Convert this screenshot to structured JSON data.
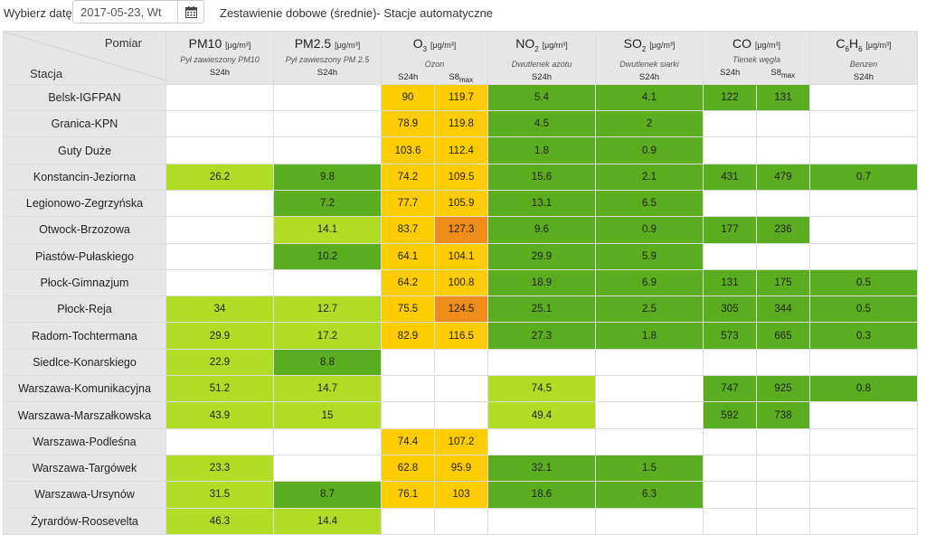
{
  "toolbar": {
    "date_label": "Wybierz datę:",
    "date_value": "2017-05-23, Wt",
    "calendar_icon": "calendar-icon",
    "title": "Zestawienie dobowe (średnie)- Stacje automatyczne"
  },
  "table": {
    "corner": {
      "measure": "Pomiar",
      "station": "Stacja"
    },
    "pollutants": [
      {
        "name": "PM10",
        "unit": "[μg/m³]",
        "desc": "Pył zawieszony PM10",
        "subs": [
          "S24h"
        ]
      },
      {
        "name": "PM2.5",
        "unit": "[μg/m³]",
        "desc": "Pył zawieszony PM 2.5",
        "subs": [
          "S24h"
        ]
      },
      {
        "name": "O3",
        "unit": "[μg/m³]",
        "desc": "Ozon",
        "subs": [
          "S24h",
          "S8max"
        ]
      },
      {
        "name": "NO2",
        "unit": "[μg/m³]",
        "desc": "Dwutlenek azotu",
        "subs": [
          "S24h"
        ]
      },
      {
        "name": "SO2",
        "unit": "[μg/m³]",
        "desc": "Dwutlenek siarki",
        "subs": [
          "S24h"
        ]
      },
      {
        "name": "CO",
        "unit": "[μg/m³]",
        "desc": "Tlenek węgla",
        "subs": [
          "S24h",
          "S8max"
        ]
      },
      {
        "name": "C6H6",
        "unit": "[μg/m³]",
        "desc": "Benzen",
        "subs": [
          "S24h"
        ]
      }
    ],
    "colors": {
      "g": "#5aad1e",
      "lg": "#b0dc26",
      "y": "#ffcc00",
      "o": "#ef8c1a",
      "w": "#ffffff"
    },
    "rows": [
      {
        "station": "Belsk-IGFPAN",
        "cells": [
          [
            "",
            ""
          ],
          [
            "",
            ""
          ],
          [
            "90",
            "y"
          ],
          [
            "119.7",
            "y"
          ],
          [
            "5.4",
            "g"
          ],
          [
            "4.1",
            "g"
          ],
          [
            "122",
            "g"
          ],
          [
            "131",
            "g"
          ],
          [
            "",
            ""
          ]
        ]
      },
      {
        "station": "Granica-KPN",
        "cells": [
          [
            "",
            ""
          ],
          [
            "",
            ""
          ],
          [
            "78.9",
            "y"
          ],
          [
            "119.8",
            "y"
          ],
          [
            "4.5",
            "g"
          ],
          [
            "2",
            "g"
          ],
          [
            "",
            ""
          ],
          [
            "",
            ""
          ],
          [
            "",
            ""
          ]
        ]
      },
      {
        "station": "Guty Duże",
        "cells": [
          [
            "",
            ""
          ],
          [
            "",
            ""
          ],
          [
            "103.6",
            "y"
          ],
          [
            "112.4",
            "y"
          ],
          [
            "1.8",
            "g"
          ],
          [
            "0.9",
            "g"
          ],
          [
            "",
            ""
          ],
          [
            "",
            ""
          ],
          [
            "",
            ""
          ]
        ]
      },
      {
        "station": "Konstancin-Jeziorna",
        "cells": [
          [
            "26.2",
            "lg"
          ],
          [
            "9.8",
            "g"
          ],
          [
            "74.2",
            "y"
          ],
          [
            "109.5",
            "y"
          ],
          [
            "15.6",
            "g"
          ],
          [
            "2.1",
            "g"
          ],
          [
            "431",
            "g"
          ],
          [
            "479",
            "g"
          ],
          [
            "0.7",
            "g"
          ]
        ]
      },
      {
        "station": "Legionowo-Zegrzyńska",
        "cells": [
          [
            "",
            ""
          ],
          [
            "7.2",
            "g"
          ],
          [
            "77.7",
            "y"
          ],
          [
            "105.9",
            "y"
          ],
          [
            "13.1",
            "g"
          ],
          [
            "6.5",
            "g"
          ],
          [
            "",
            ""
          ],
          [
            "",
            ""
          ],
          [
            "",
            ""
          ]
        ]
      },
      {
        "station": "Otwock-Brzozowa",
        "cells": [
          [
            "",
            ""
          ],
          [
            "14.1",
            "lg"
          ],
          [
            "83.7",
            "y"
          ],
          [
            "127.3",
            "o"
          ],
          [
            "9.6",
            "g"
          ],
          [
            "0.9",
            "g"
          ],
          [
            "177",
            "g"
          ],
          [
            "236",
            "g"
          ],
          [
            "",
            ""
          ]
        ]
      },
      {
        "station": "Piastów-Pułaskiego",
        "cells": [
          [
            "",
            ""
          ],
          [
            "10.2",
            "g"
          ],
          [
            "64.1",
            "y"
          ],
          [
            "104.1",
            "y"
          ],
          [
            "29.9",
            "g"
          ],
          [
            "5.9",
            "g"
          ],
          [
            "",
            ""
          ],
          [
            "",
            ""
          ],
          [
            "",
            ""
          ]
        ]
      },
      {
        "station": "Płock-Gimnazjum",
        "cells": [
          [
            "",
            ""
          ],
          [
            "",
            ""
          ],
          [
            "64.2",
            "y"
          ],
          [
            "100.8",
            "y"
          ],
          [
            "18.9",
            "g"
          ],
          [
            "6.9",
            "g"
          ],
          [
            "131",
            "g"
          ],
          [
            "175",
            "g"
          ],
          [
            "0.5",
            "g"
          ]
        ]
      },
      {
        "station": "Płock-Reja",
        "cells": [
          [
            "34",
            "lg"
          ],
          [
            "12.7",
            "lg"
          ],
          [
            "75.5",
            "y"
          ],
          [
            "124.5",
            "o"
          ],
          [
            "25.1",
            "g"
          ],
          [
            "2.5",
            "g"
          ],
          [
            "305",
            "g"
          ],
          [
            "344",
            "g"
          ],
          [
            "0.5",
            "g"
          ]
        ]
      },
      {
        "station": "Radom-Tochtermana",
        "cells": [
          [
            "29.9",
            "lg"
          ],
          [
            "17.2",
            "lg"
          ],
          [
            "82.9",
            "y"
          ],
          [
            "116.5",
            "y"
          ],
          [
            "27.3",
            "g"
          ],
          [
            "1.8",
            "g"
          ],
          [
            "573",
            "g"
          ],
          [
            "665",
            "g"
          ],
          [
            "0.3",
            "g"
          ]
        ]
      },
      {
        "station": "Siedlce-Konarskiego",
        "cells": [
          [
            "22.9",
            "lg"
          ],
          [
            "8.8",
            "g"
          ],
          [
            "",
            ""
          ],
          [
            "",
            ""
          ],
          [
            "",
            ""
          ],
          [
            "",
            ""
          ],
          [
            "",
            ""
          ],
          [
            "",
            ""
          ],
          [
            "",
            ""
          ]
        ]
      },
      {
        "station": "Warszawa-Komunikacyjna",
        "cells": [
          [
            "51.2",
            "lg"
          ],
          [
            "14.7",
            "lg"
          ],
          [
            "",
            ""
          ],
          [
            "",
            ""
          ],
          [
            "74.5",
            "lg"
          ],
          [
            "",
            ""
          ],
          [
            "747",
            "g"
          ],
          [
            "925",
            "g"
          ],
          [
            "0.8",
            "g"
          ]
        ]
      },
      {
        "station": "Warszawa-Marszałkowska",
        "cells": [
          [
            "43.9",
            "lg"
          ],
          [
            "15",
            "lg"
          ],
          [
            "",
            ""
          ],
          [
            "",
            ""
          ],
          [
            "49.4",
            "lg"
          ],
          [
            "",
            ""
          ],
          [
            "592",
            "g"
          ],
          [
            "738",
            "g"
          ],
          [
            "",
            ""
          ]
        ]
      },
      {
        "station": "Warszawa-Podleśna",
        "cells": [
          [
            "",
            ""
          ],
          [
            "",
            ""
          ],
          [
            "74.4",
            "y"
          ],
          [
            "107.2",
            "y"
          ],
          [
            "",
            ""
          ],
          [
            "",
            ""
          ],
          [
            "",
            ""
          ],
          [
            "",
            ""
          ],
          [
            "",
            ""
          ]
        ]
      },
      {
        "station": "Warszawa-Targówek",
        "cells": [
          [
            "23.3",
            "lg"
          ],
          [
            "",
            ""
          ],
          [
            "62.8",
            "y"
          ],
          [
            "95.9",
            "y"
          ],
          [
            "32.1",
            "g"
          ],
          [
            "1.5",
            "g"
          ],
          [
            "",
            ""
          ],
          [
            "",
            ""
          ],
          [
            "",
            ""
          ]
        ]
      },
      {
        "station": "Warszawa-Ursynów",
        "cells": [
          [
            "31.5",
            "lg"
          ],
          [
            "8.7",
            "g"
          ],
          [
            "76.1",
            "y"
          ],
          [
            "103",
            "y"
          ],
          [
            "18.6",
            "g"
          ],
          [
            "6.3",
            "g"
          ],
          [
            "",
            ""
          ],
          [
            "",
            ""
          ],
          [
            "",
            ""
          ]
        ]
      },
      {
        "station": "Żyrardów-Roosevelta",
        "cells": [
          [
            "46.3",
            "lg"
          ],
          [
            "14.4",
            "lg"
          ],
          [
            "",
            ""
          ],
          [
            "",
            ""
          ],
          [
            "",
            ""
          ],
          [
            "",
            ""
          ],
          [
            "",
            ""
          ],
          [
            "",
            ""
          ],
          [
            "",
            ""
          ]
        ]
      }
    ]
  }
}
